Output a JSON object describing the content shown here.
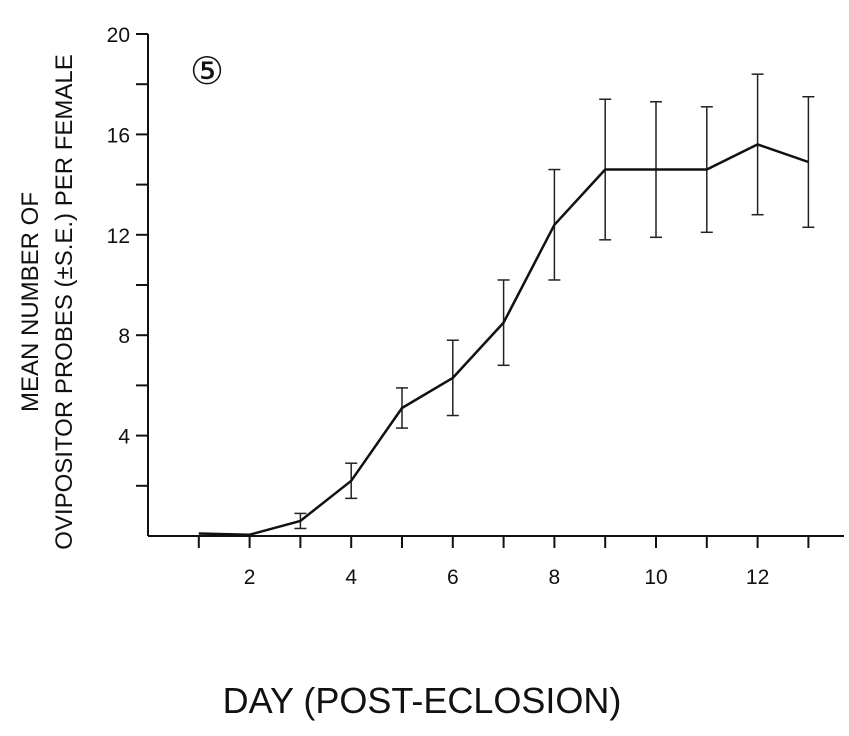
{
  "chart_data": {
    "type": "line",
    "panel_label": "⑤",
    "xlabel": "DAY (POST-ECLOSION)",
    "ylabel_line1": "MEAN NUMBER OF",
    "ylabel_line2": "OVIPOSITOR PROBES (±S.E.) PER FEMALE",
    "xlim": [
      0,
      13.9
    ],
    "ylim": [
      0,
      20
    ],
    "x_ticks": [
      1,
      2,
      3,
      4,
      5,
      6,
      7,
      8,
      9,
      10,
      11,
      12,
      13
    ],
    "x_tick_labels": [
      {
        "x": 2,
        "label": "2"
      },
      {
        "x": 4,
        "label": "4"
      },
      {
        "x": 6,
        "label": "6"
      },
      {
        "x": 8,
        "label": "8"
      },
      {
        "x": 10,
        "label": "10"
      },
      {
        "x": 12,
        "label": "12"
      }
    ],
    "y_ticks": [
      2,
      4,
      6,
      8,
      10,
      12,
      14,
      16,
      18,
      20
    ],
    "y_tick_labels": [
      {
        "y": 4,
        "label": "4"
      },
      {
        "y": 8,
        "label": "8"
      },
      {
        "y": 12,
        "label": "12"
      },
      {
        "y": 16,
        "label": "16"
      },
      {
        "y": 20,
        "label": "20"
      }
    ],
    "grid": false,
    "series": [
      {
        "points": [
          {
            "x": 1,
            "y": 0.1,
            "se": 0
          },
          {
            "x": 2,
            "y": 0.05,
            "se": 0
          },
          {
            "x": 3,
            "y": 0.6,
            "se": 0.3
          },
          {
            "x": 4,
            "y": 2.2,
            "se": 0.7
          },
          {
            "x": 5,
            "y": 5.1,
            "se": 0.8
          },
          {
            "x": 6,
            "y": 6.3,
            "se": 1.5
          },
          {
            "x": 7,
            "y": 8.5,
            "se": 1.7
          },
          {
            "x": 8,
            "y": 12.4,
            "se": 2.2
          },
          {
            "x": 9,
            "y": 14.6,
            "se": 2.8
          },
          {
            "x": 10,
            "y": 14.6,
            "se": 2.7
          },
          {
            "x": 11,
            "y": 14.6,
            "se": 2.5
          },
          {
            "x": 12,
            "y": 15.6,
            "se": 2.8
          },
          {
            "x": 13,
            "y": 14.9,
            "se": 2.6
          }
        ]
      }
    ]
  }
}
